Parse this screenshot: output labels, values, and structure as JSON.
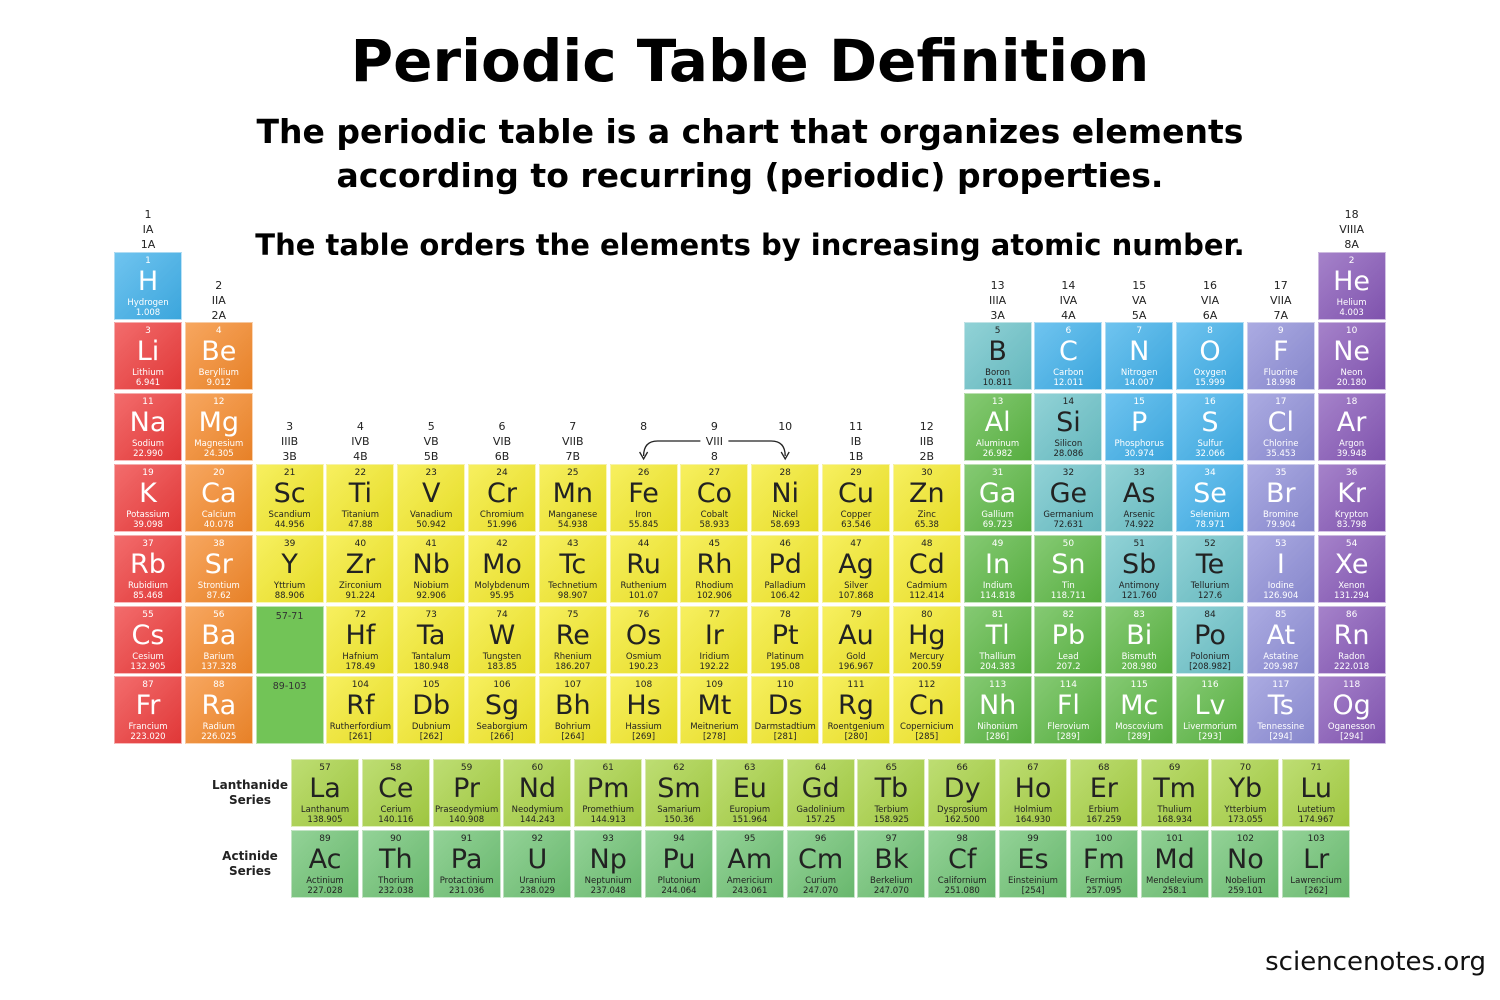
{
  "header": {
    "title": "Periodic Table Definition",
    "subtitle_line1": "The periodic table is a chart that organizes elements",
    "subtitle_line2": "according to recurring (periodic) properties.",
    "note": "The table orders the elements by increasing atomic number."
  },
  "credit": "sciencenotes.org",
  "colors": {
    "alkali": "#ee3b3b",
    "alkaline": "#f5892a",
    "transition": "#f4ea2a",
    "post": "#5cb844",
    "metalloid": "#6cc3c9",
    "nonmetal": "#3fb0ea",
    "halogen": "#8f8fd8",
    "noble": "#8758b8",
    "lanthanide": "#a8d244",
    "actinide": "#6fc374"
  },
  "groups": [
    {
      "lines": [
        "1",
        "IA",
        "1A"
      ]
    },
    {
      "lines": [
        "2",
        "IIA",
        "2A"
      ]
    },
    {
      "lines": [
        "3",
        "IIIB",
        "3B"
      ]
    },
    {
      "lines": [
        "4",
        "IVB",
        "4B"
      ]
    },
    {
      "lines": [
        "5",
        "VB",
        "5B"
      ]
    },
    {
      "lines": [
        "6",
        "VIB",
        "6B"
      ]
    },
    {
      "lines": [
        "7",
        "VIIB",
        "7B"
      ]
    },
    {
      "lines": [
        "8",
        "",
        ""
      ]
    },
    {
      "lines": [
        "9",
        "VIII",
        "8"
      ]
    },
    {
      "lines": [
        "10",
        "",
        ""
      ]
    },
    {
      "lines": [
        "11",
        "IB",
        "1B"
      ]
    },
    {
      "lines": [
        "12",
        "IIB",
        "2B"
      ]
    },
    {
      "lines": [
        "13",
        "IIIA",
        "3A"
      ]
    },
    {
      "lines": [
        "14",
        "IVA",
        "4A"
      ]
    },
    {
      "lines": [
        "15",
        "VA",
        "5A"
      ]
    },
    {
      "lines": [
        "16",
        "VIA",
        "6A"
      ]
    },
    {
      "lines": [
        "17",
        "VIIA",
        "7A"
      ]
    },
    {
      "lines": [
        "18",
        "VIIIA",
        "8A"
      ]
    }
  ],
  "placeholders": [
    {
      "label": "57-71",
      "row": 6,
      "col": 3
    },
    {
      "label": "89-103",
      "row": 7,
      "col": 3
    }
  ],
  "series_labels": {
    "lanthanide": "Lanthanide\nSeries",
    "actinide": "Actinide\nSeries"
  },
  "elements": [
    [
      "1",
      "H",
      "Hydrogen",
      "1.008",
      1,
      1,
      "nonmetal"
    ],
    [
      "2",
      "He",
      "Helium",
      "4.003",
      1,
      18,
      "noble"
    ],
    [
      "3",
      "Li",
      "Lithium",
      "6.941",
      2,
      1,
      "alkali"
    ],
    [
      "4",
      "Be",
      "Beryllium",
      "9.012",
      2,
      2,
      "alkaline"
    ],
    [
      "5",
      "B",
      "Boron",
      "10.811",
      2,
      13,
      "metalloid"
    ],
    [
      "6",
      "C",
      "Carbon",
      "12.011",
      2,
      14,
      "nonmetal"
    ],
    [
      "7",
      "N",
      "Nitrogen",
      "14.007",
      2,
      15,
      "nonmetal"
    ],
    [
      "8",
      "O",
      "Oxygen",
      "15.999",
      2,
      16,
      "nonmetal"
    ],
    [
      "9",
      "F",
      "Fluorine",
      "18.998",
      2,
      17,
      "halogen"
    ],
    [
      "10",
      "Ne",
      "Neon",
      "20.180",
      2,
      18,
      "noble"
    ],
    [
      "11",
      "Na",
      "Sodium",
      "22.990",
      3,
      1,
      "alkali"
    ],
    [
      "12",
      "Mg",
      "Magnesium",
      "24.305",
      3,
      2,
      "alkaline"
    ],
    [
      "13",
      "Al",
      "Aluminum",
      "26.982",
      3,
      13,
      "post"
    ],
    [
      "14",
      "Si",
      "Silicon",
      "28.086",
      3,
      14,
      "metalloid"
    ],
    [
      "15",
      "P",
      "Phosphorus",
      "30.974",
      3,
      15,
      "nonmetal"
    ],
    [
      "16",
      "S",
      "Sulfur",
      "32.066",
      3,
      16,
      "nonmetal"
    ],
    [
      "17",
      "Cl",
      "Chlorine",
      "35.453",
      3,
      17,
      "halogen"
    ],
    [
      "18",
      "Ar",
      "Argon",
      "39.948",
      3,
      18,
      "noble"
    ],
    [
      "19",
      "K",
      "Potassium",
      "39.098",
      4,
      1,
      "alkali"
    ],
    [
      "20",
      "Ca",
      "Calcium",
      "40.078",
      4,
      2,
      "alkaline"
    ],
    [
      "21",
      "Sc",
      "Scandium",
      "44.956",
      4,
      3,
      "transition"
    ],
    [
      "22",
      "Ti",
      "Titanium",
      "47.88",
      4,
      4,
      "transition"
    ],
    [
      "23",
      "V",
      "Vanadium",
      "50.942",
      4,
      5,
      "transition"
    ],
    [
      "24",
      "Cr",
      "Chromium",
      "51.996",
      4,
      6,
      "transition"
    ],
    [
      "25",
      "Mn",
      "Manganese",
      "54.938",
      4,
      7,
      "transition"
    ],
    [
      "26",
      "Fe",
      "Iron",
      "55.845",
      4,
      8,
      "transition"
    ],
    [
      "27",
      "Co",
      "Cobalt",
      "58.933",
      4,
      9,
      "transition"
    ],
    [
      "28",
      "Ni",
      "Nickel",
      "58.693",
      4,
      10,
      "transition"
    ],
    [
      "29",
      "Cu",
      "Copper",
      "63.546",
      4,
      11,
      "transition"
    ],
    [
      "30",
      "Zn",
      "Zinc",
      "65.38",
      4,
      12,
      "transition"
    ],
    [
      "31",
      "Ga",
      "Gallium",
      "69.723",
      4,
      13,
      "post"
    ],
    [
      "32",
      "Ge",
      "Germanium",
      "72.631",
      4,
      14,
      "metalloid"
    ],
    [
      "33",
      "As",
      "Arsenic",
      "74.922",
      4,
      15,
      "metalloid"
    ],
    [
      "34",
      "Se",
      "Selenium",
      "78.971",
      4,
      16,
      "nonmetal"
    ],
    [
      "35",
      "Br",
      "Bromine",
      "79.904",
      4,
      17,
      "halogen"
    ],
    [
      "36",
      "Kr",
      "Krypton",
      "83.798",
      4,
      18,
      "noble"
    ],
    [
      "37",
      "Rb",
      "Rubidium",
      "85.468",
      5,
      1,
      "alkali"
    ],
    [
      "38",
      "Sr",
      "Strontium",
      "87.62",
      5,
      2,
      "alkaline"
    ],
    [
      "39",
      "Y",
      "Yttrium",
      "88.906",
      5,
      3,
      "transition"
    ],
    [
      "40",
      "Zr",
      "Zirconium",
      "91.224",
      5,
      4,
      "transition"
    ],
    [
      "41",
      "Nb",
      "Niobium",
      "92.906",
      5,
      5,
      "transition"
    ],
    [
      "42",
      "Mo",
      "Molybdenum",
      "95.95",
      5,
      6,
      "transition"
    ],
    [
      "43",
      "Tc",
      "Technetium",
      "98.907",
      5,
      7,
      "transition"
    ],
    [
      "44",
      "Ru",
      "Ruthenium",
      "101.07",
      5,
      8,
      "transition"
    ],
    [
      "45",
      "Rh",
      "Rhodium",
      "102.906",
      5,
      9,
      "transition"
    ],
    [
      "46",
      "Pd",
      "Palladium",
      "106.42",
      5,
      10,
      "transition"
    ],
    [
      "47",
      "Ag",
      "Silver",
      "107.868",
      5,
      11,
      "transition"
    ],
    [
      "48",
      "Cd",
      "Cadmium",
      "112.414",
      5,
      12,
      "transition"
    ],
    [
      "49",
      "In",
      "Indium",
      "114.818",
      5,
      13,
      "post"
    ],
    [
      "50",
      "Sn",
      "Tin",
      "118.711",
      5,
      14,
      "post"
    ],
    [
      "51",
      "Sb",
      "Antimony",
      "121.760",
      5,
      15,
      "metalloid"
    ],
    [
      "52",
      "Te",
      "Tellurium",
      "127.6",
      5,
      16,
      "metalloid"
    ],
    [
      "53",
      "I",
      "Iodine",
      "126.904",
      5,
      17,
      "halogen"
    ],
    [
      "54",
      "Xe",
      "Xenon",
      "131.294",
      5,
      18,
      "noble"
    ],
    [
      "55",
      "Cs",
      "Cesium",
      "132.905",
      6,
      1,
      "alkali"
    ],
    [
      "56",
      "Ba",
      "Barium",
      "137.328",
      6,
      2,
      "alkaline"
    ],
    [
      "72",
      "Hf",
      "Hafnium",
      "178.49",
      6,
      4,
      "transition"
    ],
    [
      "73",
      "Ta",
      "Tantalum",
      "180.948",
      6,
      5,
      "transition"
    ],
    [
      "74",
      "W",
      "Tungsten",
      "183.85",
      6,
      6,
      "transition"
    ],
    [
      "75",
      "Re",
      "Rhenium",
      "186.207",
      6,
      7,
      "transition"
    ],
    [
      "76",
      "Os",
      "Osmium",
      "190.23",
      6,
      8,
      "transition"
    ],
    [
      "77",
      "Ir",
      "Iridium",
      "192.22",
      6,
      9,
      "transition"
    ],
    [
      "78",
      "Pt",
      "Platinum",
      "195.08",
      6,
      10,
      "transition"
    ],
    [
      "79",
      "Au",
      "Gold",
      "196.967",
      6,
      11,
      "transition"
    ],
    [
      "80",
      "Hg",
      "Mercury",
      "200.59",
      6,
      12,
      "transition"
    ],
    [
      "81",
      "Tl",
      "Thallium",
      "204.383",
      6,
      13,
      "post"
    ],
    [
      "82",
      "Pb",
      "Lead",
      "207.2",
      6,
      14,
      "post"
    ],
    [
      "83",
      "Bi",
      "Bismuth",
      "208.980",
      6,
      15,
      "post"
    ],
    [
      "84",
      "Po",
      "Polonium",
      "[208.982]",
      6,
      16,
      "metalloid"
    ],
    [
      "85",
      "At",
      "Astatine",
      "209.987",
      6,
      17,
      "halogen"
    ],
    [
      "86",
      "Rn",
      "Radon",
      "222.018",
      6,
      18,
      "noble"
    ],
    [
      "87",
      "Fr",
      "Francium",
      "223.020",
      7,
      1,
      "alkali"
    ],
    [
      "88",
      "Ra",
      "Radium",
      "226.025",
      7,
      2,
      "alkaline"
    ],
    [
      "104",
      "Rf",
      "Rutherfordium",
      "[261]",
      7,
      4,
      "transition"
    ],
    [
      "105",
      "Db",
      "Dubnium",
      "[262]",
      7,
      5,
      "transition"
    ],
    [
      "106",
      "Sg",
      "Seaborgium",
      "[266]",
      7,
      6,
      "transition"
    ],
    [
      "107",
      "Bh",
      "Bohrium",
      "[264]",
      7,
      7,
      "transition"
    ],
    [
      "108",
      "Hs",
      "Hassium",
      "[269]",
      7,
      8,
      "transition"
    ],
    [
      "109",
      "Mt",
      "Meitnerium",
      "[278]",
      7,
      9,
      "transition"
    ],
    [
      "110",
      "Ds",
      "Darmstadtium",
      "[281]",
      7,
      10,
      "transition"
    ],
    [
      "111",
      "Rg",
      "Roentgenium",
      "[280]",
      7,
      11,
      "transition"
    ],
    [
      "112",
      "Cn",
      "Copernicium",
      "[285]",
      7,
      12,
      "transition"
    ],
    [
      "113",
      "Nh",
      "Nihonium",
      "[286]",
      7,
      13,
      "post"
    ],
    [
      "114",
      "Fl",
      "Flerovium",
      "[289]",
      7,
      14,
      "post"
    ],
    [
      "115",
      "Mc",
      "Moscovium",
      "[289]",
      7,
      15,
      "post"
    ],
    [
      "116",
      "Lv",
      "Livermorium",
      "[293]",
      7,
      16,
      "post"
    ],
    [
      "117",
      "Ts",
      "Tennessine",
      "[294]",
      7,
      17,
      "halogen"
    ],
    [
      "118",
      "Og",
      "Oganesson",
      "[294]",
      7,
      18,
      "noble"
    ],
    [
      "57",
      "La",
      "Lanthanum",
      "138.905",
      9,
      1,
      "lanthanide"
    ],
    [
      "58",
      "Ce",
      "Cerium",
      "140.116",
      9,
      2,
      "lanthanide"
    ],
    [
      "59",
      "Pr",
      "Praseodymium",
      "140.908",
      9,
      3,
      "lanthanide"
    ],
    [
      "60",
      "Nd",
      "Neodymium",
      "144.243",
      9,
      4,
      "lanthanide"
    ],
    [
      "61",
      "Pm",
      "Promethium",
      "144.913",
      9,
      5,
      "lanthanide"
    ],
    [
      "62",
      "Sm",
      "Samarium",
      "150.36",
      9,
      6,
      "lanthanide"
    ],
    [
      "63",
      "Eu",
      "Europium",
      "151.964",
      9,
      7,
      "lanthanide"
    ],
    [
      "64",
      "Gd",
      "Gadolinium",
      "157.25",
      9,
      8,
      "lanthanide"
    ],
    [
      "65",
      "Tb",
      "Terbium",
      "158.925",
      9,
      9,
      "lanthanide"
    ],
    [
      "66",
      "Dy",
      "Dysprosium",
      "162.500",
      9,
      10,
      "lanthanide"
    ],
    [
      "67",
      "Ho",
      "Holmium",
      "164.930",
      9,
      11,
      "lanthanide"
    ],
    [
      "68",
      "Er",
      "Erbium",
      "167.259",
      9,
      12,
      "lanthanide"
    ],
    [
      "69",
      "Tm",
      "Thulium",
      "168.934",
      9,
      13,
      "lanthanide"
    ],
    [
      "70",
      "Yb",
      "Ytterbium",
      "173.055",
      9,
      14,
      "lanthanide"
    ],
    [
      "71",
      "Lu",
      "Lutetium",
      "174.967",
      9,
      15,
      "lanthanide"
    ],
    [
      "89",
      "Ac",
      "Actinium",
      "227.028",
      10,
      1,
      "actinide"
    ],
    [
      "90",
      "Th",
      "Thorium",
      "232.038",
      10,
      2,
      "actinide"
    ],
    [
      "91",
      "Pa",
      "Protactinium",
      "231.036",
      10,
      3,
      "actinide"
    ],
    [
      "92",
      "U",
      "Uranium",
      "238.029",
      10,
      4,
      "actinide"
    ],
    [
      "93",
      "Np",
      "Neptunium",
      "237.048",
      10,
      5,
      "actinide"
    ],
    [
      "94",
      "Pu",
      "Plutonium",
      "244.064",
      10,
      6,
      "actinide"
    ],
    [
      "95",
      "Am",
      "Americium",
      "243.061",
      10,
      7,
      "actinide"
    ],
    [
      "96",
      "Cm",
      "Curium",
      "247.070",
      10,
      8,
      "actinide"
    ],
    [
      "97",
      "Bk",
      "Berkelium",
      "247.070",
      10,
      9,
      "actinide"
    ],
    [
      "98",
      "Cf",
      "Californium",
      "251.080",
      10,
      10,
      "actinide"
    ],
    [
      "99",
      "Es",
      "Einsteinium",
      "[254]",
      10,
      11,
      "actinide"
    ],
    [
      "100",
      "Fm",
      "Fermium",
      "257.095",
      10,
      12,
      "actinide"
    ],
    [
      "101",
      "Md",
      "Mendelevium",
      "258.1",
      10,
      13,
      "actinide"
    ],
    [
      "102",
      "No",
      "Nobelium",
      "259.101",
      10,
      14,
      "actinide"
    ],
    [
      "103",
      "Lr",
      "Lawrencium",
      "[262]",
      10,
      15,
      "actinide"
    ]
  ]
}
